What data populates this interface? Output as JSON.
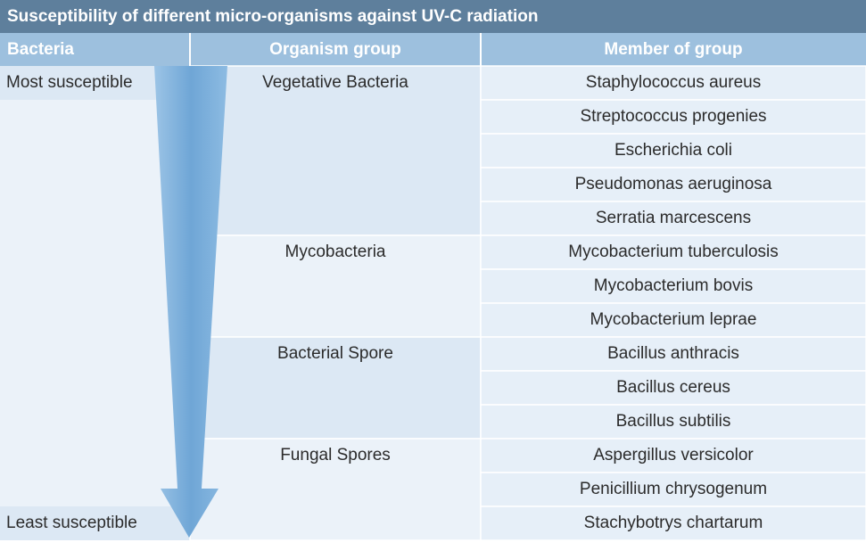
{
  "title": "Susceptibility of different micro-organisms against UV-C radiation",
  "table": {
    "headers": [
      "Bacteria",
      "Organism group",
      "Member of group"
    ],
    "most_susceptible": "Most susceptible",
    "least_susceptible": "Least susceptible",
    "groups": [
      {
        "label": "Vegetative Bacteria",
        "members": [
          "Staphylococcus aureus",
          "Streptococcus progenies",
          "Escherichia coli",
          "Pseudomonas aeruginosa",
          "Serratia marcescens"
        ]
      },
      {
        "label": "Mycobacteria",
        "members": [
          "Mycobacterium tuberculosis",
          "Mycobacterium bovis",
          "Mycobacterium leprae"
        ]
      },
      {
        "label": "Bacterial Spore",
        "members": [
          "Bacillus anthracis",
          "Bacillus cereus",
          "Bacillus subtilis"
        ]
      },
      {
        "label": "Fungal Spores",
        "members": [
          "Aspergillus versicolor",
          "Penicillium chrysogenum",
          "Stachybotrys chartarum"
        ]
      }
    ]
  }
}
